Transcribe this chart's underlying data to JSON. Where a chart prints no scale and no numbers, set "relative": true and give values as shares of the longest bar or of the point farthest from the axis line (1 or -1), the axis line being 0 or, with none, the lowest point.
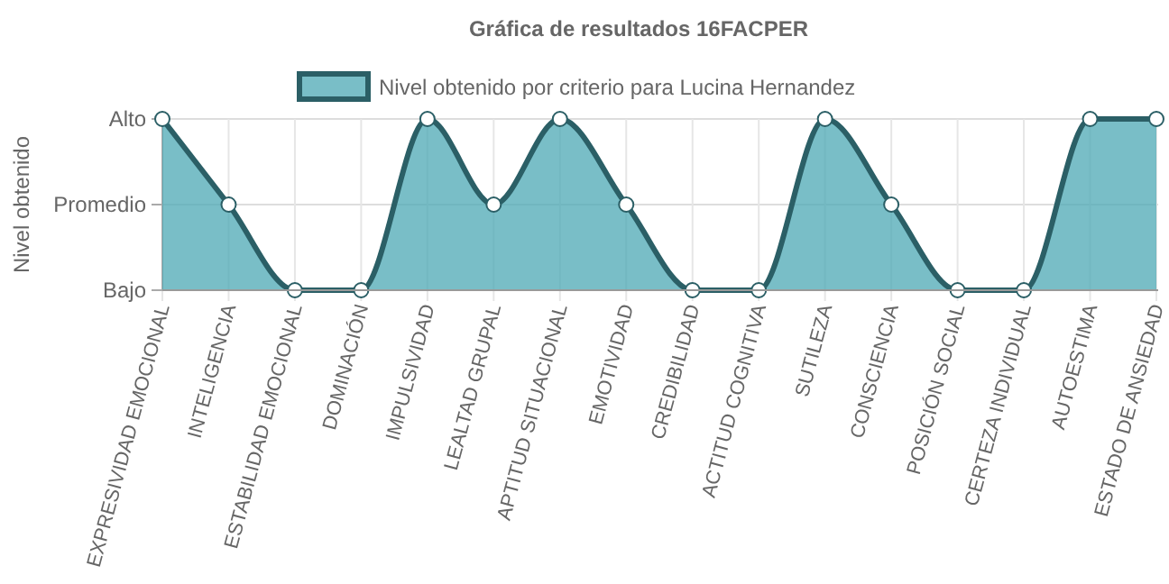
{
  "chart_data": {
    "type": "area",
    "title": "Gráfica de resultados 16FACPER",
    "ylabel": "Nivel obtenido",
    "relative": true,
    "categories": [
      "EXPRESIVIDAD EMOCIONAL",
      "INTELIGENCIA",
      "ESTABILIDAD EMOCIONAL",
      "DOMINACIÓN",
      "IMPULSIVIDAD",
      "LEALTAD GRUPAL",
      "APTITUD SITUACIONAL",
      "EMOTIVIDAD",
      "CREDIBILIDAD",
      "ACTITUD COGNITIVA",
      "SUTILEZA",
      "CONSCIENCIA",
      "POSICIÓN SOCIAL",
      "CERTEZA INDIVIDUAL",
      "AUTOESTIMA",
      "ESTADO DE ANSIEDAD"
    ],
    "y_categories": [
      "Alto",
      "Promedio",
      "Bajo"
    ],
    "series": [
      {
        "name": "Nivel obtenido por criterio para Lucina Hernandez",
        "color": "#2b5f66",
        "values": [
          1,
          0.5,
          0,
          0,
          1,
          0.5,
          1,
          0.5,
          0,
          0,
          1,
          0.5,
          0,
          0,
          1,
          1
        ]
      }
    ],
    "ref_lines": [
      {
        "axis": "y",
        "value": 1,
        "color": "#dddddd"
      },
      {
        "axis": "y",
        "value": 0.5,
        "color": "#dddddd"
      }
    ],
    "grid": "x",
    "legend": "top",
    "marker": "circle",
    "line_style": "solid"
  }
}
